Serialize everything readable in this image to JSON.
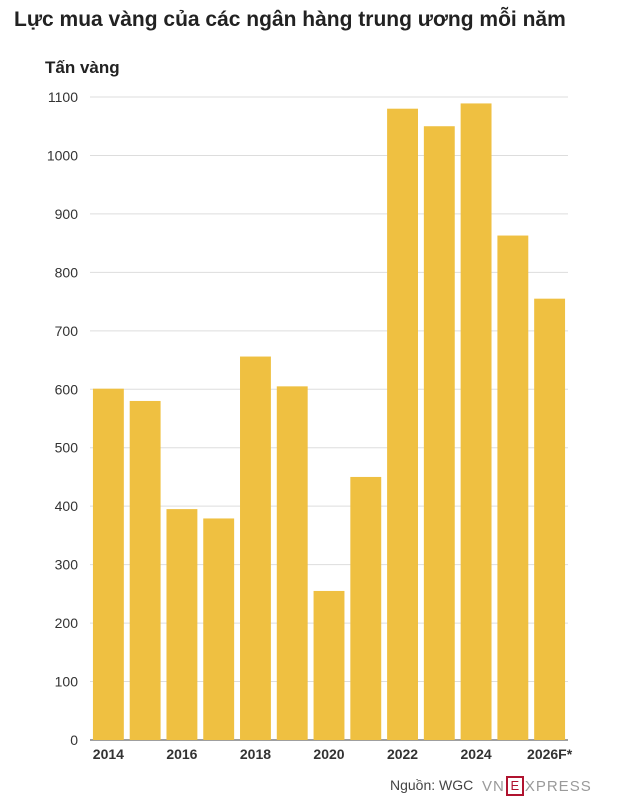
{
  "title": "Lực mua vàng của các ngân hàng trung ương mỗi năm",
  "source": "Nguồn: WGC",
  "logo": {
    "part1": "VN",
    "part2": "E",
    "part3": "XPRESS"
  },
  "colors": {
    "bar": "#EFC041",
    "grid": "#dddddd",
    "axis": "#666666"
  },
  "chart_data": {
    "type": "bar",
    "title": "Lực mua vàng của các ngân hàng trung ương mỗi năm",
    "ylabel": "Tấn vàng",
    "xlabel": "",
    "categories": [
      "2014",
      "2015",
      "2016",
      "2017",
      "2018",
      "2019",
      "2020",
      "2021",
      "2022",
      "2023",
      "2024",
      "2025",
      "2026F*"
    ],
    "x_tick_labels": [
      "2014",
      "",
      "2016",
      "",
      "2018",
      "",
      "2020",
      "",
      "2022",
      "",
      "2024",
      "",
      "2026F*"
    ],
    "values": [
      601,
      580,
      395,
      379,
      656,
      605,
      255,
      450,
      1080,
      1050,
      1089,
      863,
      755
    ],
    "ylim": [
      0,
      1100
    ],
    "yticks": [
      0,
      100,
      200,
      300,
      400,
      500,
      600,
      700,
      800,
      900,
      1000,
      1100
    ],
    "grid": true
  }
}
